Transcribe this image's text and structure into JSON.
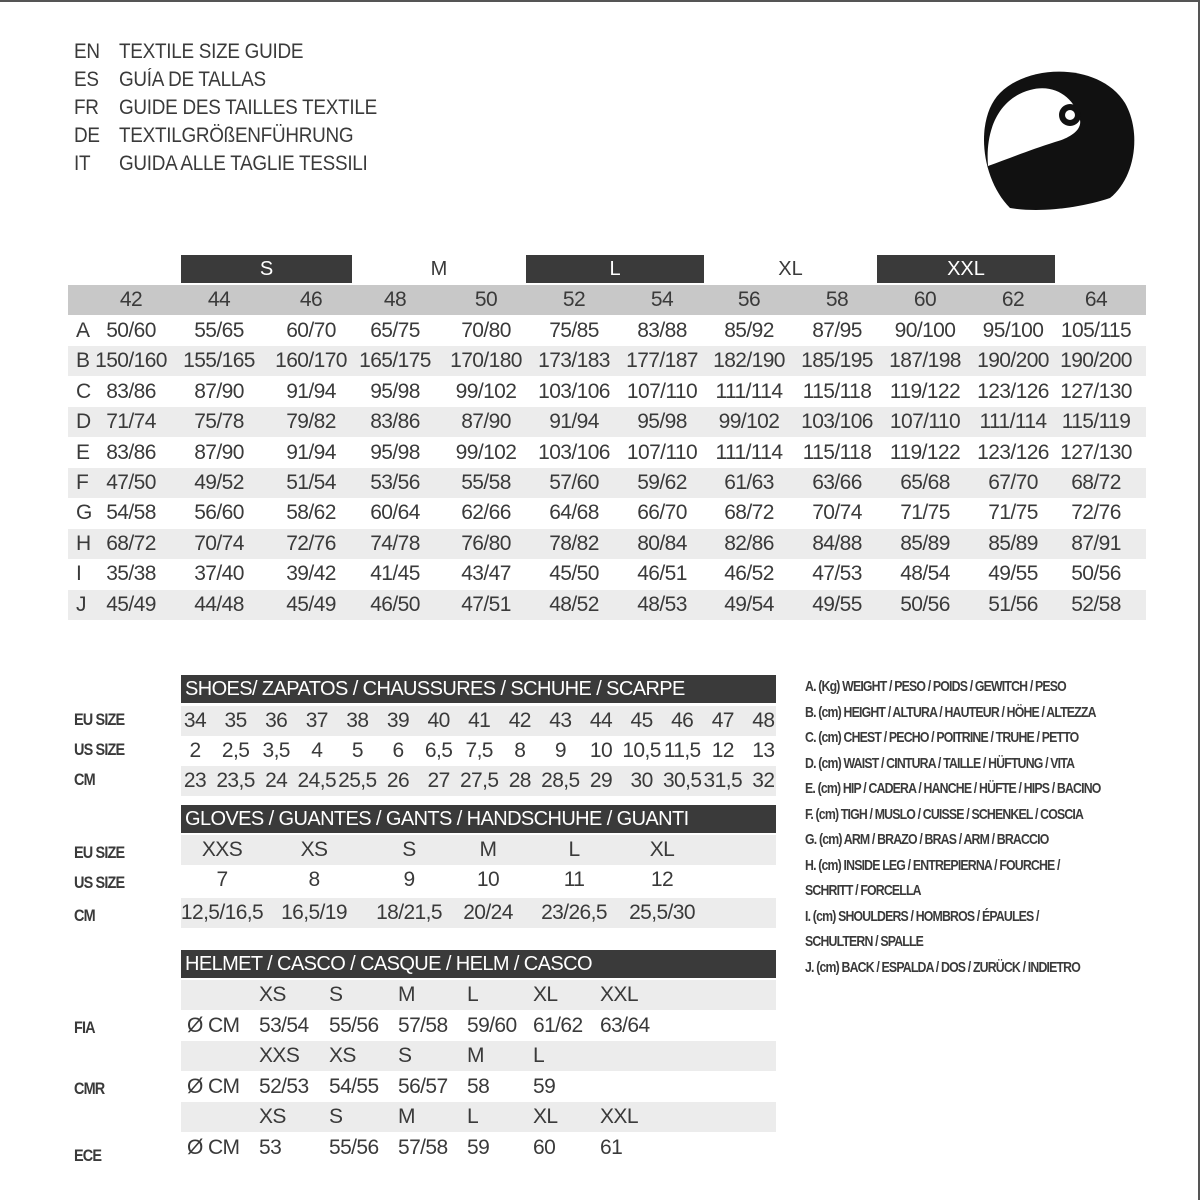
{
  "titles": [
    {
      "code": "EN",
      "text": "TEXTILE SIZE GUIDE"
    },
    {
      "code": "ES",
      "text": "GUÍA DE TALLAS"
    },
    {
      "code": "FR",
      "text": "GUIDE DES TAILLES TEXTILE"
    },
    {
      "code": "DE",
      "text": "TEXTILGRÖßENFÜHRUNG"
    },
    {
      "code": "IT",
      "text": "GUIDA ALLE TAGLIE TESSILI"
    }
  ],
  "icon": "helmet-icon",
  "colors": {
    "dark": "#3a3a3a",
    "header_gray": "#c8c8c8",
    "row_gray": "#ececec"
  },
  "textile": {
    "size_bands": [
      "S",
      "M",
      "L",
      "XL",
      "XXL"
    ],
    "sizes": [
      "42",
      "44",
      "46",
      "48",
      "50",
      "52",
      "54",
      "56",
      "58",
      "60",
      "62",
      "64"
    ],
    "rows": [
      {
        "label": "A",
        "values": [
          "50/60",
          "55/65",
          "60/70",
          "65/75",
          "70/80",
          "75/85",
          "83/88",
          "85/92",
          "87/95",
          "90/100",
          "95/100",
          "105/115"
        ]
      },
      {
        "label": "B",
        "values": [
          "150/160",
          "155/165",
          "160/170",
          "165/175",
          "170/180",
          "173/183",
          "177/187",
          "182/190",
          "185/195",
          "187/198",
          "190/200",
          "190/200"
        ]
      },
      {
        "label": "C",
        "values": [
          "83/86",
          "87/90",
          "91/94",
          "95/98",
          "99/102",
          "103/106",
          "107/110",
          "111/114",
          "115/118",
          "119/122",
          "123/126",
          "127/130"
        ]
      },
      {
        "label": "D",
        "values": [
          "71/74",
          "75/78",
          "79/82",
          "83/86",
          "87/90",
          "91/94",
          "95/98",
          "99/102",
          "103/106",
          "107/110",
          "111/114",
          "115/119"
        ]
      },
      {
        "label": "E",
        "values": [
          "83/86",
          "87/90",
          "91/94",
          "95/98",
          "99/102",
          "103/106",
          "107/110",
          "111/114",
          "115/118",
          "119/122",
          "123/126",
          "127/130"
        ]
      },
      {
        "label": "F",
        "values": [
          "47/50",
          "49/52",
          "51/54",
          "53/56",
          "55/58",
          "57/60",
          "59/62",
          "61/63",
          "63/66",
          "65/68",
          "67/70",
          "68/72"
        ]
      },
      {
        "label": "G",
        "values": [
          "54/58",
          "56/60",
          "58/62",
          "60/64",
          "62/66",
          "64/68",
          "66/70",
          "68/72",
          "70/74",
          "71/75",
          "71/75",
          "72/76"
        ]
      },
      {
        "label": "H",
        "values": [
          "68/72",
          "70/74",
          "72/76",
          "74/78",
          "76/80",
          "78/82",
          "80/84",
          "82/86",
          "84/88",
          "85/89",
          "85/89",
          "87/91"
        ]
      },
      {
        "label": "I",
        "values": [
          "35/38",
          "37/40",
          "39/42",
          "41/45",
          "43/47",
          "45/50",
          "46/51",
          "46/52",
          "47/53",
          "48/54",
          "49/55",
          "50/56"
        ]
      },
      {
        "label": "J",
        "values": [
          "45/49",
          "44/48",
          "45/49",
          "46/50",
          "47/51",
          "48/52",
          "48/53",
          "49/54",
          "49/55",
          "50/56",
          "51/56",
          "52/58"
        ]
      }
    ]
  },
  "shoes": {
    "title": "SHOES/ ZAPATOS / CHAUSSURES / SCHUHE / SCARPE",
    "rows": [
      {
        "label": "EU SIZE",
        "values": [
          "34",
          "35",
          "36",
          "37",
          "38",
          "39",
          "40",
          "41",
          "42",
          "43",
          "44",
          "45",
          "46",
          "47",
          "48"
        ]
      },
      {
        "label": "US SIZE",
        "values": [
          "2",
          "2,5",
          "3,5",
          "4",
          "5",
          "6",
          "6,5",
          "7,5",
          "8",
          "9",
          "10",
          "10,5",
          "11,5",
          "12",
          "13"
        ]
      },
      {
        "label": "CM",
        "values": [
          "23",
          "23,5",
          "24",
          "24,5",
          "25,5",
          "26",
          "27",
          "27,5",
          "28",
          "28,5",
          "29",
          "30",
          "30,5",
          "31,5",
          "32"
        ]
      }
    ]
  },
  "gloves": {
    "title": "GLOVES / GUANTES / GANTS / HANDSCHUHE / GUANTI",
    "rows": [
      {
        "label": "EU SIZE",
        "values": [
          "XXS",
          "XS",
          "S",
          "M",
          "L",
          "XL"
        ]
      },
      {
        "label": "US SIZE",
        "values": [
          "7",
          "8",
          "9",
          "10",
          "11",
          "12"
        ]
      },
      {
        "label": "CM",
        "values": [
          "12,5/16,5",
          "16,5/19",
          "18/21,5",
          "20/24",
          "23/26,5",
          "25,5/30"
        ]
      }
    ]
  },
  "helmet": {
    "title": "HELMET / CASCO / CASQUE / HELM / CASCO",
    "unit": "Ø CM",
    "standards": [
      {
        "label": "FIA",
        "sizes": [
          "XS",
          "S",
          "M",
          "L",
          "XL",
          "XXL"
        ],
        "values": [
          "53/54",
          "55/56",
          "57/58",
          "59/60",
          "61/62",
          "63/64"
        ]
      },
      {
        "label": "CMR",
        "sizes": [
          "XXS",
          "XS",
          "S",
          "M",
          "L"
        ],
        "values": [
          "52/53",
          "54/55",
          "56/57",
          "58",
          "59"
        ]
      },
      {
        "label": "ECE",
        "sizes": [
          "XS",
          "S",
          "M",
          "L",
          "XL",
          "XXL"
        ],
        "values": [
          "53",
          "55/56",
          "57/58",
          "59",
          "60",
          "61"
        ]
      }
    ]
  },
  "legend": [
    "A. (Kg) WEIGHT / PESO / POIDS / GEWITCH / PESO",
    "B. (cm) HEIGHT / ALTURA / HAUTEUR / HÖHE / ALTEZZA",
    "C. (cm) CHEST / PECHO / POITRINE / TRUHE / PETTO",
    "D. (cm) WAIST / CINTURA / TAILLE / HÜFTUNG / VITA",
    "E. (cm) HIP / CADERA / HANCHE / HÜFTE / HIPS /  BACINO",
    "F.  (cm) TIGH / MUSLO / CUISSE / SCHENKEL / COSCIA",
    "G. (cm) ARM  / BRAZO / BRAS / ARM / BRACCIO",
    "H. (cm) INSIDE LEG / ENTREPIERNA / FOURCHE /",
    "SCHRITT / FORCELLA",
    "I.  (cm) SHOULDERS / HOMBROS / ÉPAULES /",
    "SCHULTERN / SPALLE",
    "J. (cm) BACK / ESPALDA / DOS / ZURÜCK / INDIETRO"
  ]
}
